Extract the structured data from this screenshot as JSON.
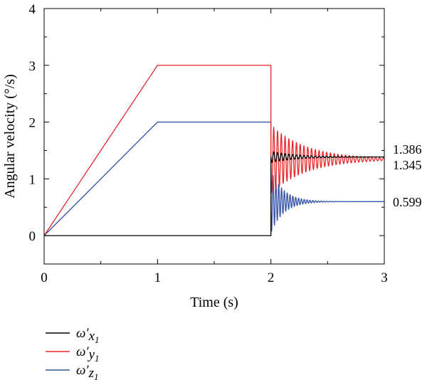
{
  "chart_data": {
    "type": "line",
    "xlabel": "Time (s)",
    "ylabel": "Angular velocity (°/s)",
    "xlim": [
      0,
      3
    ],
    "ylim": [
      -0.5,
      4
    ],
    "x_ticks": [
      "0",
      "1",
      "2",
      "3"
    ],
    "y_ticks": [
      "0",
      "1",
      "2",
      "3",
      "4"
    ],
    "grid": false,
    "legend_position": "bottom-left, below plot",
    "end_value_labels": [
      "1.386",
      "1.345",
      "0.599"
    ],
    "series": [
      {
        "name": "ω′x1",
        "legend_main": "ω′",
        "legend_sub": "x",
        "legend_subsub": "1",
        "color": "#000000",
        "points": [
          [
            0,
            0
          ],
          [
            2,
            0
          ],
          [
            2.0,
            1.386
          ],
          [
            3,
            1.386
          ]
        ],
        "oscillation": {
          "start": 2.0,
          "end": 3.0,
          "final": 1.386,
          "initial_amplitude": 0.1,
          "decay": 4.5,
          "frequency_hz": 30
        }
      },
      {
        "name": "ω′y1",
        "legend_main": "ω′",
        "legend_sub": "y",
        "legend_subsub": "1",
        "color": "#e8262a",
        "points": [
          [
            0,
            0
          ],
          [
            1,
            3
          ],
          [
            2,
            3
          ],
          [
            2.0,
            1.345
          ],
          [
            3,
            1.345
          ]
        ],
        "oscillation": {
          "start": 2.0,
          "end": 3.0,
          "final": 1.345,
          "initial_amplitude": 0.6,
          "decay": 3.2,
          "frequency_hz": 30
        }
      },
      {
        "name": "ω′z1",
        "legend_main": "ω′",
        "legend_sub": "z",
        "legend_subsub": "1",
        "color": "#3352a8",
        "points": [
          [
            0,
            0
          ],
          [
            1,
            2
          ],
          [
            2,
            2
          ],
          [
            2.0,
            0.599
          ],
          [
            3,
            0.599
          ]
        ],
        "oscillation": {
          "start": 2.0,
          "end": 3.0,
          "final": 0.599,
          "initial_amplitude": 0.55,
          "decay": 9.0,
          "frequency_hz": 40
        }
      }
    ]
  }
}
